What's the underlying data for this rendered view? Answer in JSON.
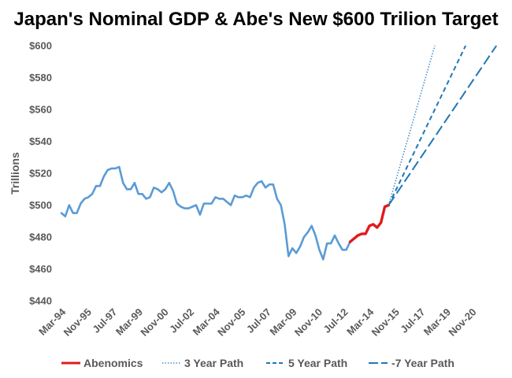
{
  "chart_data": {
    "type": "line",
    "title": "Japan's Nominal GDP & Abe's New $600 Trilion Target",
    "ylabel": "Trillions",
    "xlabel": "",
    "ylim": [
      440,
      600
    ],
    "y_ticks": [
      "$440",
      "$460",
      "$480",
      "$500",
      "$520",
      "$540",
      "$560",
      "$580",
      "$600"
    ],
    "x_ticks": [
      "Mar-94",
      "Nov-95",
      "Jul-97",
      "Mar-99",
      "Nov-00",
      "Jul-02",
      "Mar-04",
      "Nov-05",
      "Jul-07",
      "Mar-09",
      "Nov-10",
      "Jul-12",
      "Mar-14",
      "Nov-15",
      "Jul-17",
      "Mar-19",
      "Nov-20"
    ],
    "x_unit": "quarter",
    "grid": false,
    "legend_position": "bottom",
    "series": [
      {
        "key": "history",
        "color": "#5b9bd5",
        "style": "solid",
        "x": [
          "1994Q1",
          "1994Q2",
          "1994Q3",
          "1994Q4",
          "1995Q1",
          "1995Q2",
          "1995Q3",
          "1995Q4",
          "1996Q1",
          "1996Q2",
          "1996Q3",
          "1996Q4",
          "1997Q1",
          "1997Q2",
          "1997Q3",
          "1997Q4",
          "1998Q1",
          "1998Q2",
          "1998Q3",
          "1998Q4",
          "1999Q1",
          "1999Q2",
          "1999Q3",
          "1999Q4",
          "2000Q1",
          "2000Q2",
          "2000Q3",
          "2000Q4",
          "2001Q1",
          "2001Q2",
          "2001Q3",
          "2001Q4",
          "2002Q1",
          "2002Q2",
          "2002Q3",
          "2002Q4",
          "2003Q1",
          "2003Q2",
          "2003Q3",
          "2003Q4",
          "2004Q1",
          "2004Q2",
          "2004Q3",
          "2004Q4",
          "2005Q1",
          "2005Q2",
          "2005Q3",
          "2005Q4",
          "2006Q1",
          "2006Q2",
          "2006Q3",
          "2006Q4",
          "2007Q1",
          "2007Q2",
          "2007Q3",
          "2007Q4",
          "2008Q1",
          "2008Q2",
          "2008Q3",
          "2008Q4",
          "2009Q1",
          "2009Q2",
          "2009Q3",
          "2009Q4",
          "2010Q1",
          "2010Q2",
          "2010Q3",
          "2010Q4",
          "2011Q1",
          "2011Q2",
          "2011Q3",
          "2011Q4",
          "2012Q1",
          "2012Q2",
          "2012Q3",
          "2012Q4"
        ],
        "values": [
          495,
          493,
          500,
          495,
          495,
          501,
          504,
          505,
          507,
          512,
          512,
          518,
          522,
          523,
          523,
          524,
          514,
          510,
          510,
          514,
          507,
          507,
          504,
          505,
          511,
          510,
          508,
          510,
          514,
          509,
          501,
          499,
          498,
          498,
          499,
          500,
          494,
          501,
          501,
          501,
          505,
          504,
          504,
          502,
          500,
          506,
          505,
          505,
          506,
          505,
          511,
          514,
          515,
          511,
          513,
          513,
          504,
          500,
          488,
          468,
          473,
          470,
          474,
          480,
          483,
          487,
          481,
          472,
          466,
          476,
          476,
          481,
          476,
          472,
          472,
          477
        ]
      },
      {
        "key": "abenomics",
        "name": "Abenomics",
        "color": "#e31a1c",
        "style": "solid",
        "x": [
          "2012Q4",
          "2013Q1",
          "2013Q2",
          "2013Q3",
          "2013Q4",
          "2014Q1",
          "2014Q2",
          "2014Q3",
          "2014Q4",
          "2015Q1",
          "2015Q2"
        ],
        "values": [
          477,
          479,
          481,
          482,
          482,
          487,
          488,
          486,
          489,
          499,
          500
        ]
      },
      {
        "key": "path3",
        "name": "3 Year Path",
        "color": "#4a8fc9",
        "style": "dotted",
        "x": [
          "2015Q2",
          "2018Q2"
        ],
        "values": [
          500,
          600
        ]
      },
      {
        "key": "path5",
        "name": "5 Year Path",
        "color": "#1f77b4",
        "style": "dashed",
        "x": [
          "2015Q2",
          "2020Q2"
        ],
        "values": [
          500,
          600
        ]
      },
      {
        "key": "path7",
        "name": "7 Year Path",
        "color": "#1f77b4",
        "style": "longdash",
        "x": [
          "2015Q2",
          "2022Q2"
        ],
        "values": [
          500,
          600
        ]
      }
    ]
  },
  "legend": {
    "abenomics": "Abenomics",
    "path3": "3 Year Path",
    "path5": "5 Year Path",
    "path7": "-7 Year Path"
  }
}
